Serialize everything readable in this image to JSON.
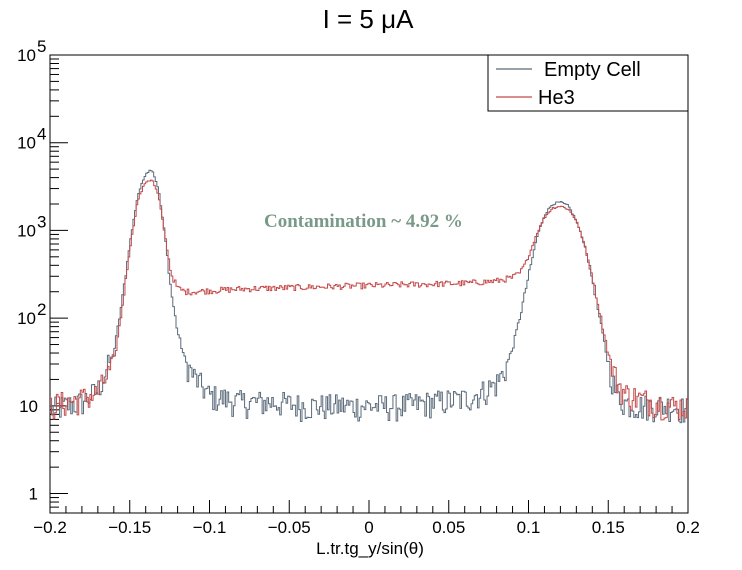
{
  "chart_data": {
    "type": "line",
    "title": "I = 5 μA",
    "xlabel": "L.tr.tg_y/sin(θ)",
    "ylabel": "",
    "xlim": [
      -0.2,
      0.2
    ],
    "ylim": [
      0.6,
      100000
    ],
    "log_y": true,
    "grid": false,
    "legend_position": "top-right",
    "x_ticks": [
      "−0.2",
      "−0.15",
      "−0.1",
      "−0.05",
      "0",
      "0.05",
      "0.1",
      "0.15",
      "0.2"
    ],
    "y_ticks": [
      {
        "value": 1,
        "label": "1"
      },
      {
        "value": 10,
        "label": "10"
      },
      {
        "value": 100,
        "label": "10",
        "exp": "2"
      },
      {
        "value": 1000,
        "label": "10",
        "exp": "3"
      },
      {
        "value": 10000,
        "label": "10",
        "exp": "4"
      },
      {
        "value": 100000,
        "label": "10",
        "exp": "5"
      }
    ],
    "annotation": {
      "text": "Contamination ~ 4.92 %",
      "x": -0.0035,
      "y": 1100,
      "color": "#7a9a88"
    },
    "series": [
      {
        "name": "Empty Cell",
        "color": "#5b6b7b",
        "x": [
          -0.2,
          -0.19,
          -0.18,
          -0.17,
          -0.16,
          -0.155,
          -0.15,
          -0.145,
          -0.14,
          -0.136,
          -0.132,
          -0.128,
          -0.124,
          -0.12,
          -0.115,
          -0.11,
          -0.105,
          -0.1,
          -0.09,
          -0.08,
          -0.06,
          -0.04,
          -0.02,
          0.0,
          0.02,
          0.04,
          0.06,
          0.07,
          0.08,
          0.085,
          0.09,
          0.095,
          0.1,
          0.105,
          0.11,
          0.115,
          0.12,
          0.125,
          0.13,
          0.135,
          0.14,
          0.145,
          0.15,
          0.155,
          0.16,
          0.17,
          0.18,
          0.19,
          0.2
        ],
        "values": [
          9,
          10,
          11,
          15,
          40,
          150,
          700,
          2500,
          4500,
          5000,
          3000,
          900,
          200,
          70,
          32,
          22,
          17,
          13,
          12,
          11,
          11,
          10,
          10,
          10,
          10,
          11,
          12,
          14,
          18,
          25,
          45,
          110,
          300,
          800,
          1500,
          2000,
          2100,
          1900,
          1300,
          700,
          280,
          90,
          30,
          14,
          11,
          10,
          10,
          10,
          9
        ]
      },
      {
        "name": "He3",
        "color": "#c44a4a",
        "x": [
          -0.2,
          -0.19,
          -0.18,
          -0.17,
          -0.16,
          -0.155,
          -0.15,
          -0.145,
          -0.14,
          -0.136,
          -0.132,
          -0.128,
          -0.124,
          -0.12,
          -0.115,
          -0.11,
          -0.1,
          -0.09,
          -0.08,
          -0.06,
          -0.04,
          -0.02,
          0.0,
          0.02,
          0.04,
          0.06,
          0.08,
          0.09,
          0.095,
          0.1,
          0.105,
          0.11,
          0.115,
          0.12,
          0.125,
          0.13,
          0.135,
          0.14,
          0.145,
          0.15,
          0.155,
          0.16,
          0.17,
          0.18,
          0.19,
          0.2
        ],
        "values": [
          10,
          11,
          12,
          14,
          30,
          120,
          600,
          2200,
          3600,
          3800,
          2500,
          900,
          320,
          220,
          200,
          200,
          205,
          210,
          215,
          220,
          225,
          230,
          235,
          240,
          245,
          250,
          265,
          290,
          330,
          500,
          900,
          1400,
          1800,
          1900,
          1750,
          1300,
          700,
          300,
          110,
          40,
          20,
          14,
          12,
          11,
          10,
          10
        ]
      }
    ]
  }
}
